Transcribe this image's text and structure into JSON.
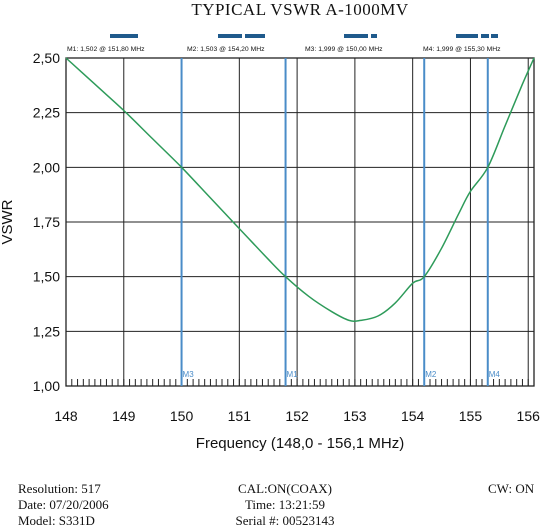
{
  "title": "TYPICAL VSWR A-1000MV",
  "chart_data": {
    "type": "line",
    "xlabel": "Frequency (148,0 - 156,1 MHz)",
    "ylabel": "VSWR",
    "xlim": [
      148,
      156.1
    ],
    "ylim": [
      1.0,
      2.5
    ],
    "grid": true,
    "x_ticks": [
      148,
      149,
      150,
      151,
      152,
      153,
      154,
      155,
      156
    ],
    "y_ticks": [
      1.0,
      1.25,
      1.5,
      1.75,
      2.0,
      2.25,
      2.5
    ],
    "y_tick_labels": [
      "1,00",
      "1,25",
      "1,50",
      "1,75",
      "2,00",
      "2,25",
      "2,50"
    ],
    "x_tick_labels": [
      "148",
      "149",
      "150",
      "151",
      "152",
      "153",
      "154",
      "155",
      "156"
    ],
    "series": [
      {
        "color": "#2e9b5a",
        "x": [
          148.0,
          148.5,
          149.0,
          149.5,
          150.0,
          150.5,
          151.0,
          151.5,
          151.8,
          152.2,
          152.6,
          152.9,
          153.1,
          153.4,
          153.7,
          154.0,
          154.2,
          154.5,
          154.8,
          155.0,
          155.3,
          155.6,
          155.9,
          156.1
        ],
        "y": [
          2.5,
          2.38,
          2.26,
          2.13,
          2.0,
          1.86,
          1.72,
          1.58,
          1.5,
          1.41,
          1.34,
          1.3,
          1.3,
          1.32,
          1.38,
          1.47,
          1.5,
          1.63,
          1.79,
          1.89,
          2.0,
          2.19,
          2.38,
          2.5
        ]
      }
    ],
    "markers": [
      {
        "label": "M3",
        "x": 150.0,
        "y": 1.999,
        "header": "M3: 1,999  @ 150,00 MHz"
      },
      {
        "label": "M1",
        "x": 151.8,
        "y": 1.502,
        "header": "M1: 1,502  @ 151,80 MHz"
      },
      {
        "label": "M2",
        "x": 154.2,
        "y": 1.503,
        "header": "M2: 1,503  @ 154,20 MHz"
      },
      {
        "label": "M4",
        "x": 155.3,
        "y": 1.999,
        "header": "M4: 1,999  @ 155,30 MHz"
      }
    ],
    "colors": {
      "curve": "#2e9b5a",
      "marker": "#4a8cc8",
      "bars": "#1f5a8c",
      "grid": "#222222"
    }
  },
  "footer": {
    "resolution": "Resolution:  517",
    "date": "Date: 07/20/2006",
    "model": "Model: S331D",
    "cal": "CAL:ON(COAX)",
    "time": "Time: 13:21:59",
    "serial": "Serial #: 00523143",
    "cw": "CW: ON"
  }
}
